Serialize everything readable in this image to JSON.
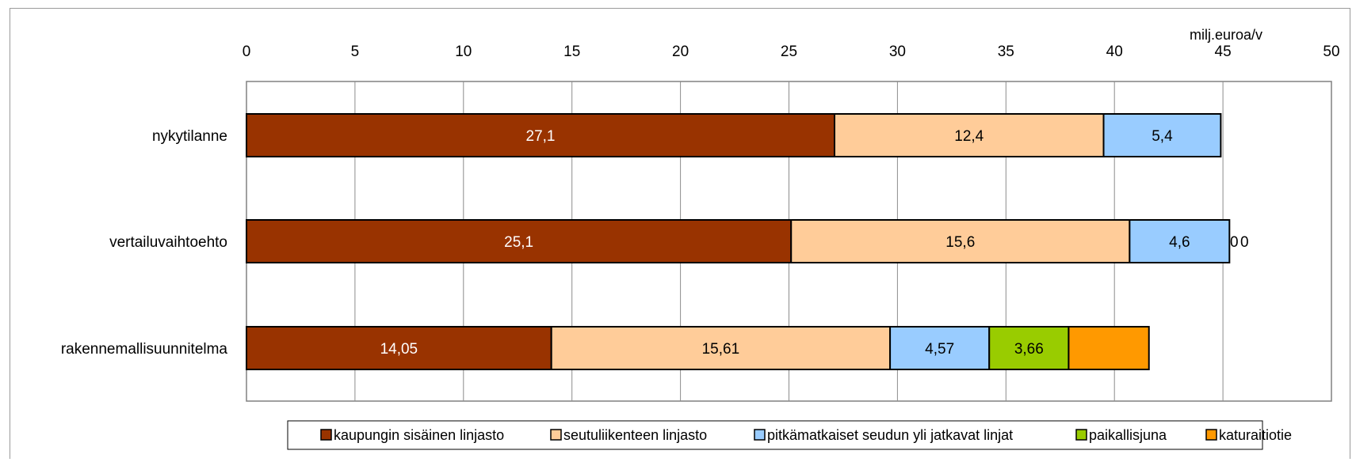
{
  "chart_data": {
    "type": "bar",
    "orientation": "horizontal",
    "stacked": true,
    "unit_label": "milj.euroa/v",
    "xlim": [
      0,
      50
    ],
    "x_ticks": [
      "0",
      "5",
      "10",
      "15",
      "20",
      "25",
      "30",
      "35",
      "40",
      "45",
      "50"
    ],
    "grid": true,
    "legend_position": "bottom",
    "categories": [
      "nykytilanne",
      "vertailuvaihtoehto",
      "rakennemallisuunnitelma"
    ],
    "series": [
      {
        "name": "kaupungin sisäinen linjasto",
        "color": "#993300",
        "label_color": "#ffffff",
        "values": [
          27.1,
          25.1,
          14.05
        ],
        "labels": [
          "27,1",
          "25,1",
          "14,05"
        ]
      },
      {
        "name": "seutuliikenteen linjasto",
        "color": "#ffcc99",
        "label_color": "#000000",
        "values": [
          12.4,
          15.6,
          15.61
        ],
        "labels": [
          "12,4",
          "15,6",
          "15,61"
        ]
      },
      {
        "name": "pitkämatkaiset seudun yli jatkavat linjat",
        "color": "#99ccff",
        "label_color": "#000000",
        "values": [
          5.4,
          4.6,
          4.57
        ],
        "labels": [
          "5,4",
          "4,6",
          "4,57"
        ]
      },
      {
        "name": "paikallisjuna",
        "color": "#99cc00",
        "label_color": "#000000",
        "values": [
          0,
          0,
          3.66
        ],
        "labels": [
          "",
          "0",
          "3,66"
        ]
      },
      {
        "name": "katuraitiotie",
        "color": "#ff9900",
        "label_color": "#000000",
        "values": [
          0,
          0,
          3.7
        ],
        "labels": [
          "",
          "0",
          ""
        ]
      }
    ]
  }
}
